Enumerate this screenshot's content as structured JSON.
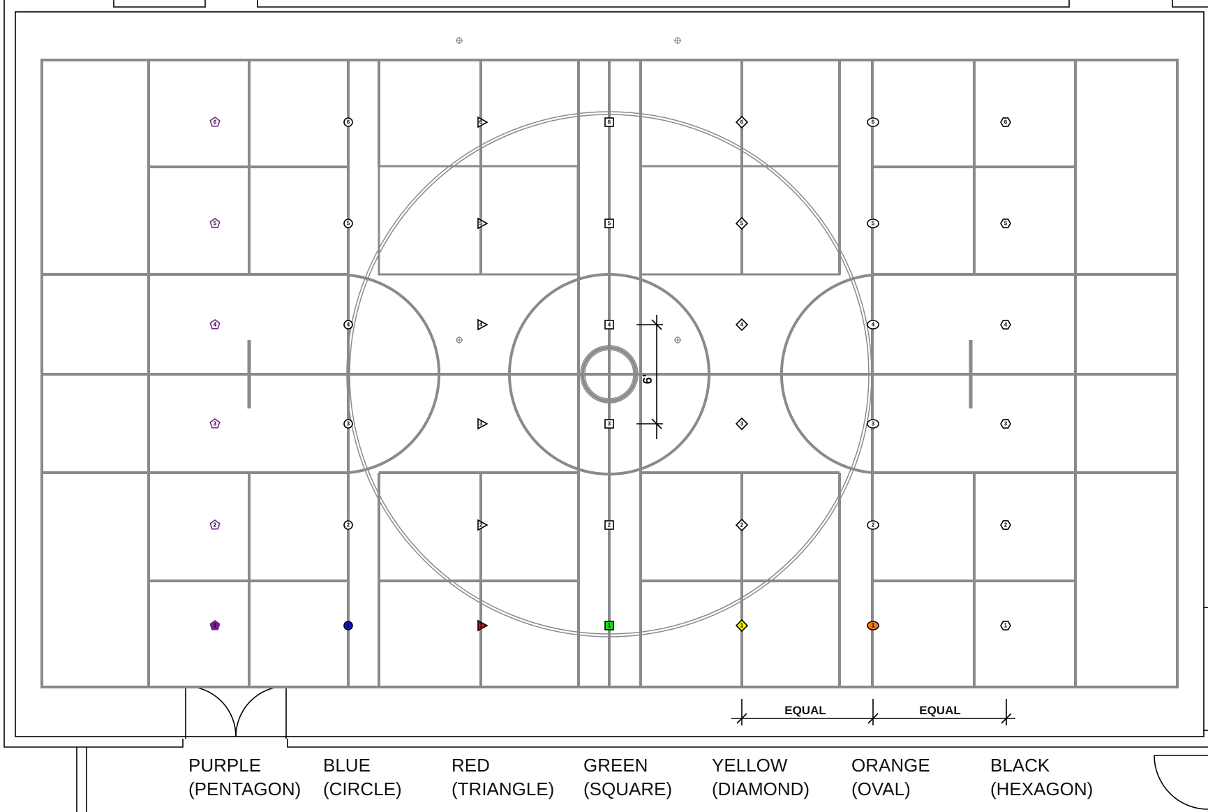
{
  "dimensions": {
    "center_vertical": "6'",
    "equal_left": "EQUAL",
    "equal_right": "EQUAL"
  },
  "columns": [
    {
      "id": "purple",
      "color_name": "PURPLE",
      "shape_name": "(PENTAGON)",
      "shape": "pentagon",
      "outline": "#7a1f8f",
      "first_fill": "#7a1f8f"
    },
    {
      "id": "blue",
      "color_name": "BLUE",
      "shape_name": "(CIRCLE)",
      "shape": "circle",
      "outline": "#000000",
      "first_fill": "#0a12e6"
    },
    {
      "id": "red",
      "color_name": "RED",
      "shape_name": "(TRIANGLE)",
      "shape": "triangle",
      "outline": "#000000",
      "first_fill": "#c81818"
    },
    {
      "id": "green",
      "color_name": "GREEN",
      "shape_name": "(SQUARE)",
      "shape": "square",
      "outline": "#000000",
      "first_fill": "#16e016"
    },
    {
      "id": "yellow",
      "color_name": "YELLOW",
      "shape_name": "(DIAMOND)",
      "shape": "diamond",
      "outline": "#000000",
      "first_fill": "#f5f500"
    },
    {
      "id": "orange",
      "color_name": "ORANGE",
      "shape_name": "(OVAL)",
      "shape": "oval",
      "outline": "#000000",
      "first_fill": "#f07a18"
    },
    {
      "id": "black",
      "color_name": "BLACK",
      "shape_name": "(HEXAGON)",
      "shape": "hexagon",
      "outline": "#000000",
      "first_fill": "#ffffff"
    }
  ],
  "marker_numbers": [
    "6",
    "5",
    "4",
    "3",
    "2",
    "1"
  ],
  "colors": {
    "court_line": "#8a8a8a",
    "wall_line": "#000000",
    "background": "#ffffff"
  }
}
